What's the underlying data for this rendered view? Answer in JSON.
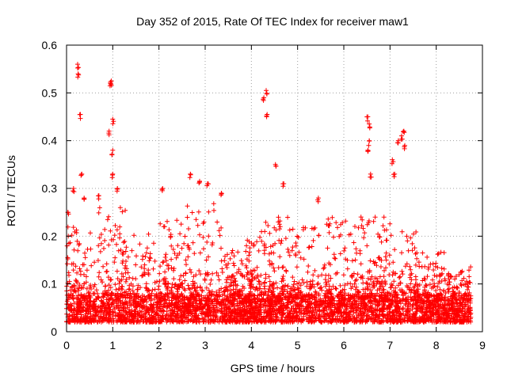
{
  "chart_data": {
    "type": "scatter",
    "title": "Day 352 of 2015, Rate Of TEC Index for receiver maw1",
    "xlabel": "GPS time / hours",
    "ylabel": "ROTI / TECUs",
    "xlim": [
      0,
      9
    ],
    "ylim": [
      0,
      0.6
    ],
    "xticks": [
      "0",
      "1",
      "2",
      "3",
      "4",
      "5",
      "6",
      "7",
      "8",
      "9"
    ],
    "yticks": [
      "0",
      "0.1",
      "0.2",
      "0.3",
      "0.4",
      "0.5",
      "0.6"
    ],
    "grid": true,
    "marker": "+",
    "color": "#ff0000",
    "x_data_range": [
      0,
      8.75
    ],
    "baseline_range": [
      0.02,
      0.08
    ],
    "peaks": [
      {
        "x": 0.03,
        "y": 0.25
      },
      {
        "x": 0.15,
        "y": 0.3
      },
      {
        "x": 0.24,
        "y": 0.56
      },
      {
        "x": 0.25,
        "y": 0.54
      },
      {
        "x": 0.3,
        "y": 0.455
      },
      {
        "x": 0.33,
        "y": 0.33
      },
      {
        "x": 0.38,
        "y": 0.28
      },
      {
        "x": 0.7,
        "y": 0.285
      },
      {
        "x": 0.95,
        "y": 0.52
      },
      {
        "x": 0.97,
        "y": 0.525
      },
      {
        "x": 0.92,
        "y": 0.42
      },
      {
        "x": 1.0,
        "y": 0.445
      },
      {
        "x": 1.0,
        "y": 0.38
      },
      {
        "x": 1.0,
        "y": 0.33
      },
      {
        "x": 1.1,
        "y": 0.3
      },
      {
        "x": 2.08,
        "y": 0.3
      },
      {
        "x": 2.68,
        "y": 0.33
      },
      {
        "x": 2.88,
        "y": 0.315
      },
      {
        "x": 3.05,
        "y": 0.31
      },
      {
        "x": 3.35,
        "y": 0.29
      },
      {
        "x": 4.27,
        "y": 0.49
      },
      {
        "x": 4.32,
        "y": 0.505
      },
      {
        "x": 4.34,
        "y": 0.455
      },
      {
        "x": 4.52,
        "y": 0.35
      },
      {
        "x": 4.7,
        "y": 0.31
      },
      {
        "x": 5.45,
        "y": 0.28
      },
      {
        "x": 6.52,
        "y": 0.45
      },
      {
        "x": 6.55,
        "y": 0.435
      },
      {
        "x": 6.55,
        "y": 0.4
      },
      {
        "x": 6.52,
        "y": 0.38
      },
      {
        "x": 6.58,
        "y": 0.33
      },
      {
        "x": 7.05,
        "y": 0.36
      },
      {
        "x": 7.1,
        "y": 0.33
      },
      {
        "x": 7.18,
        "y": 0.4
      },
      {
        "x": 7.25,
        "y": 0.41
      },
      {
        "x": 7.3,
        "y": 0.42
      },
      {
        "x": 7.32,
        "y": 0.39
      }
    ],
    "clusters": [
      {
        "from": 0.0,
        "to": 0.6,
        "max": 0.22
      },
      {
        "from": 0.6,
        "to": 1.3,
        "max": 0.26
      },
      {
        "from": 1.3,
        "to": 2.0,
        "max": 0.21
      },
      {
        "from": 2.0,
        "to": 2.6,
        "max": 0.24
      },
      {
        "from": 2.6,
        "to": 3.4,
        "max": 0.27
      },
      {
        "from": 3.4,
        "to": 3.8,
        "max": 0.17
      },
      {
        "from": 3.8,
        "to": 4.2,
        "max": 0.2
      },
      {
        "from": 4.2,
        "to": 4.8,
        "max": 0.24
      },
      {
        "from": 4.8,
        "to": 5.6,
        "max": 0.22
      },
      {
        "from": 5.6,
        "to": 6.3,
        "max": 0.24
      },
      {
        "from": 6.3,
        "to": 6.9,
        "max": 0.25
      },
      {
        "from": 6.9,
        "to": 7.6,
        "max": 0.23
      },
      {
        "from": 7.6,
        "to": 8.2,
        "max": 0.17
      },
      {
        "from": 8.2,
        "to": 8.75,
        "max": 0.14
      }
    ]
  }
}
